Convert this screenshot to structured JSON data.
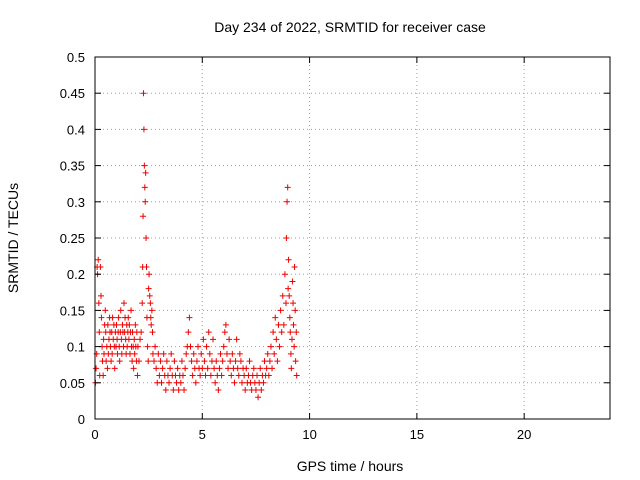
{
  "chart_data": {
    "type": "scatter",
    "title": "Day 234 of 2022, SRMTID for receiver case",
    "xlabel": "GPS time / hours",
    "ylabel": "SRMTID / TECUs",
    "xlim": [
      0,
      24
    ],
    "ylim": [
      0,
      0.5
    ],
    "xticks": [
      0,
      5,
      10,
      15,
      20
    ],
    "xtick_labels": [
      "0",
      "5",
      "10",
      "15",
      "20"
    ],
    "yticks": [
      0,
      0.05,
      0.1,
      0.15,
      0.2,
      0.25,
      0.3,
      0.35,
      0.4,
      0.45,
      0.5
    ],
    "ytick_labels": [
      "0",
      "0.05",
      "0.1",
      "0.15",
      "0.2",
      "0.25",
      "0.3",
      "0.35",
      "0.4",
      "0.45",
      "0.5"
    ],
    "grid": true,
    "marker": "+",
    "color": "#ee0000",
    "series": [
      {
        "name": "SRMTID",
        "points": [
          [
            0.02,
            0.05
          ],
          [
            0.05,
            0.07
          ],
          [
            0.08,
            0.09
          ],
          [
            0.1,
            0.21
          ],
          [
            0.12,
            0.2
          ],
          [
            0.15,
            0.22
          ],
          [
            0.18,
            0.16
          ],
          [
            0.2,
            0.12
          ],
          [
            0.22,
            0.06
          ],
          [
            0.25,
            0.21
          ],
          [
            0.28,
            0.17
          ],
          [
            0.3,
            0.14
          ],
          [
            0.33,
            0.1
          ],
          [
            0.35,
            0.08
          ],
          [
            0.38,
            0.06
          ],
          [
            0.4,
            0.11
          ],
          [
            0.42,
            0.09
          ],
          [
            0.45,
            0.13
          ],
          [
            0.48,
            0.15
          ],
          [
            0.5,
            0.12
          ],
          [
            0.52,
            0.08
          ],
          [
            0.55,
            0.1
          ],
          [
            0.58,
            0.07
          ],
          [
            0.6,
            0.13
          ],
          [
            0.62,
            0.09
          ],
          [
            0.65,
            0.11
          ],
          [
            0.68,
            0.14
          ],
          [
            0.7,
            0.12
          ],
          [
            0.72,
            0.1
          ],
          [
            0.75,
            0.08
          ],
          [
            0.78,
            0.12
          ],
          [
            0.8,
            0.09
          ],
          [
            0.82,
            0.14
          ],
          [
            0.85,
            0.11
          ],
          [
            0.88,
            0.13
          ],
          [
            0.9,
            0.1
          ],
          [
            0.92,
            0.07
          ],
          [
            0.95,
            0.12
          ],
          [
            0.98,
            0.1
          ],
          [
            1.0,
            0.13
          ],
          [
            1.03,
            0.11
          ],
          [
            1.05,
            0.09
          ],
          [
            1.08,
            0.12
          ],
          [
            1.1,
            0.14
          ],
          [
            1.13,
            0.1
          ],
          [
            1.15,
            0.08
          ],
          [
            1.18,
            0.12
          ],
          [
            1.2,
            0.15
          ],
          [
            1.23,
            0.11
          ],
          [
            1.25,
            0.09
          ],
          [
            1.28,
            0.13
          ],
          [
            1.3,
            0.12
          ],
          [
            1.33,
            0.1
          ],
          [
            1.35,
            0.16
          ],
          [
            1.38,
            0.12
          ],
          [
            1.4,
            0.14
          ],
          [
            1.43,
            0.11
          ],
          [
            1.45,
            0.09
          ],
          [
            1.48,
            0.13
          ],
          [
            1.5,
            0.1
          ],
          [
            1.53,
            0.12
          ],
          [
            1.55,
            0.14
          ],
          [
            1.58,
            0.11
          ],
          [
            1.6,
            0.13
          ],
          [
            1.63,
            0.09
          ],
          [
            1.65,
            0.12
          ],
          [
            1.68,
            0.15
          ],
          [
            1.7,
            0.1
          ],
          [
            1.73,
            0.08
          ],
          [
            1.75,
            0.12
          ],
          [
            1.78,
            0.1
          ],
          [
            1.8,
            0.07
          ],
          [
            1.83,
            0.11
          ],
          [
            1.85,
            0.09
          ],
          [
            1.88,
            0.13
          ],
          [
            1.9,
            0.1
          ],
          [
            1.93,
            0.08
          ],
          [
            1.95,
            0.12
          ],
          [
            1.98,
            0.06
          ],
          [
            2.0,
            0.1
          ],
          [
            2.05,
            0.08
          ],
          [
            2.1,
            0.11
          ],
          [
            2.15,
            0.12
          ],
          [
            2.2,
            0.16
          ],
          [
            2.22,
            0.21
          ],
          [
            2.24,
            0.28
          ],
          [
            2.26,
            0.45
          ],
          [
            2.28,
            0.4
          ],
          [
            2.3,
            0.35
          ],
          [
            2.32,
            0.32
          ],
          [
            2.34,
            0.3
          ],
          [
            2.36,
            0.34
          ],
          [
            2.38,
            0.25
          ],
          [
            2.4,
            0.21
          ],
          [
            2.42,
            0.14
          ],
          [
            2.45,
            0.1
          ],
          [
            2.48,
            0.08
          ],
          [
            2.5,
            0.18
          ],
          [
            2.52,
            0.2
          ],
          [
            2.55,
            0.17
          ],
          [
            2.58,
            0.16
          ],
          [
            2.6,
            0.14
          ],
          [
            2.62,
            0.13
          ],
          [
            2.65,
            0.15
          ],
          [
            2.68,
            0.12
          ],
          [
            2.7,
            0.09
          ],
          [
            2.75,
            0.08
          ],
          [
            2.8,
            0.1
          ],
          [
            2.85,
            0.07
          ],
          [
            2.9,
            0.05
          ],
          [
            2.95,
            0.09
          ],
          [
            3.0,
            0.06
          ],
          [
            3.05,
            0.08
          ],
          [
            3.1,
            0.05
          ],
          [
            3.15,
            0.07
          ],
          [
            3.2,
            0.09
          ],
          [
            3.25,
            0.06
          ],
          [
            3.3,
            0.04
          ],
          [
            3.35,
            0.08
          ],
          [
            3.4,
            0.06
          ],
          [
            3.45,
            0.05
          ],
          [
            3.5,
            0.07
          ],
          [
            3.55,
            0.09
          ],
          [
            3.6,
            0.06
          ],
          [
            3.65,
            0.04
          ],
          [
            3.7,
            0.08
          ],
          [
            3.75,
            0.06
          ],
          [
            3.8,
            0.05
          ],
          [
            3.85,
            0.07
          ],
          [
            3.9,
            0.04
          ],
          [
            3.95,
            0.06
          ],
          [
            4.0,
            0.05
          ],
          [
            4.05,
            0.08
          ],
          [
            4.1,
            0.06
          ],
          [
            4.15,
            0.04
          ],
          [
            4.2,
            0.07
          ],
          [
            4.25,
            0.09
          ],
          [
            4.3,
            0.1
          ],
          [
            4.35,
            0.12
          ],
          [
            4.4,
            0.14
          ],
          [
            4.45,
            0.1
          ],
          [
            4.5,
            0.08
          ],
          [
            4.55,
            0.06
          ],
          [
            4.6,
            0.09
          ],
          [
            4.65,
            0.07
          ],
          [
            4.7,
            0.05
          ],
          [
            4.75,
            0.08
          ],
          [
            4.8,
            0.1
          ],
          [
            4.85,
            0.07
          ],
          [
            4.9,
            0.06
          ],
          [
            4.95,
            0.09
          ],
          [
            5.0,
            0.07
          ],
          [
            5.05,
            0.11
          ],
          [
            5.1,
            0.08
          ],
          [
            5.15,
            0.06
          ],
          [
            5.2,
            0.1
          ],
          [
            5.25,
            0.07
          ],
          [
            5.3,
            0.12
          ],
          [
            5.35,
            0.09
          ],
          [
            5.4,
            0.06
          ],
          [
            5.45,
            0.08
          ],
          [
            5.5,
            0.11
          ],
          [
            5.55,
            0.07
          ],
          [
            5.6,
            0.05
          ],
          [
            5.65,
            0.08
          ],
          [
            5.7,
            0.06
          ],
          [
            5.75,
            0.04
          ],
          [
            5.8,
            0.07
          ],
          [
            5.85,
            0.09
          ],
          [
            5.9,
            0.06
          ],
          [
            5.95,
            0.08
          ],
          [
            6.0,
            0.1
          ],
          [
            6.05,
            0.12
          ],
          [
            6.1,
            0.13
          ],
          [
            6.15,
            0.09
          ],
          [
            6.2,
            0.07
          ],
          [
            6.25,
            0.11
          ],
          [
            6.3,
            0.08
          ],
          [
            6.35,
            0.06
          ],
          [
            6.4,
            0.09
          ],
          [
            6.45,
            0.07
          ],
          [
            6.5,
            0.05
          ],
          [
            6.55,
            0.08
          ],
          [
            6.6,
            0.11
          ],
          [
            6.65,
            0.07
          ],
          [
            6.7,
            0.06
          ],
          [
            6.75,
            0.09
          ],
          [
            6.8,
            0.08
          ],
          [
            6.85,
            0.05
          ],
          [
            6.9,
            0.07
          ],
          [
            6.95,
            0.06
          ],
          [
            7.0,
            0.04
          ],
          [
            7.05,
            0.07
          ],
          [
            7.1,
            0.05
          ],
          [
            7.15,
            0.06
          ],
          [
            7.2,
            0.08
          ],
          [
            7.25,
            0.05
          ],
          [
            7.3,
            0.04
          ],
          [
            7.35,
            0.06
          ],
          [
            7.4,
            0.07
          ],
          [
            7.45,
            0.05
          ],
          [
            7.5,
            0.04
          ],
          [
            7.55,
            0.06
          ],
          [
            7.6,
            0.03
          ],
          [
            7.65,
            0.05
          ],
          [
            7.7,
            0.07
          ],
          [
            7.75,
            0.04
          ],
          [
            7.8,
            0.06
          ],
          [
            7.85,
            0.05
          ],
          [
            7.9,
            0.08
          ],
          [
            7.95,
            0.06
          ],
          [
            8.0,
            0.07
          ],
          [
            8.05,
            0.09
          ],
          [
            8.1,
            0.06
          ],
          [
            8.15,
            0.08
          ],
          [
            8.2,
            0.1
          ],
          [
            8.25,
            0.07
          ],
          [
            8.3,
            0.12
          ],
          [
            8.35,
            0.09
          ],
          [
            8.4,
            0.14
          ],
          [
            8.45,
            0.11
          ],
          [
            8.5,
            0.08
          ],
          [
            8.55,
            0.13
          ],
          [
            8.6,
            0.1
          ],
          [
            8.65,
            0.15
          ],
          [
            8.7,
            0.12
          ],
          [
            8.75,
            0.17
          ],
          [
            8.8,
            0.13
          ],
          [
            8.85,
            0.2
          ],
          [
            8.9,
            0.16
          ],
          [
            8.92,
            0.25
          ],
          [
            8.95,
            0.3
          ],
          [
            8.98,
            0.32
          ],
          [
            9.0,
            0.18
          ],
          [
            9.02,
            0.22
          ],
          [
            9.05,
            0.17
          ],
          [
            9.08,
            0.14
          ],
          [
            9.1,
            0.12
          ],
          [
            9.13,
            0.09
          ],
          [
            9.15,
            0.07
          ],
          [
            9.18,
            0.11
          ],
          [
            9.2,
            0.19
          ],
          [
            9.23,
            0.16
          ],
          [
            9.25,
            0.13
          ],
          [
            9.28,
            0.1
          ],
          [
            9.3,
            0.21
          ],
          [
            9.33,
            0.15
          ],
          [
            9.35,
            0.08
          ],
          [
            9.38,
            0.12
          ],
          [
            9.4,
            0.06
          ]
        ]
      }
    ]
  }
}
